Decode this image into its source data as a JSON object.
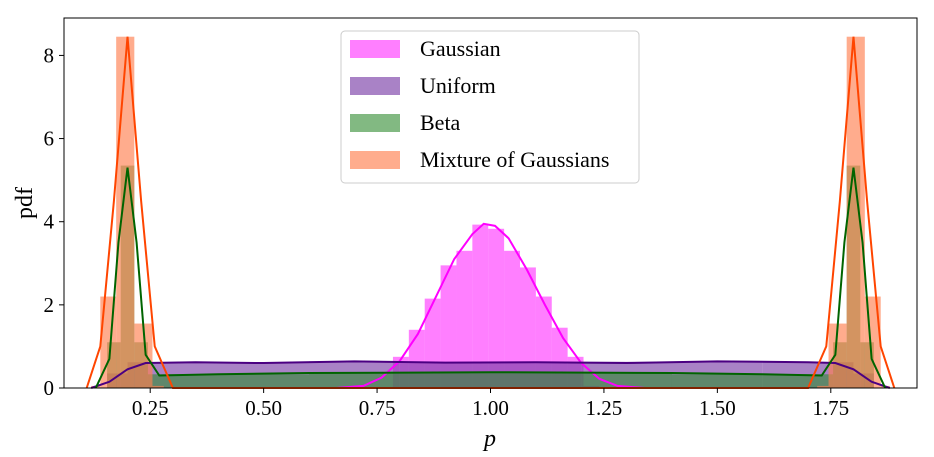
{
  "chart_data": {
    "type": "histogram",
    "xlabel": "p",
    "ylabel": "pdf",
    "xlim": [
      0.06,
      1.94
    ],
    "ylim": [
      0,
      8.9
    ],
    "xticks": [
      "0.25",
      "0.50",
      "0.75",
      "1.00",
      "1.25",
      "1.50",
      "1.75"
    ],
    "xtick_values": [
      0.25,
      0.5,
      0.75,
      1.0,
      1.25,
      1.5,
      1.75
    ],
    "yticks": [
      "0",
      "2",
      "4",
      "6",
      "8"
    ],
    "ytick_values": [
      0,
      2,
      4,
      6,
      8
    ],
    "legend_position": "upper-center",
    "series": [
      {
        "name": "Gaussian",
        "fill": "#ff00ff",
        "line": "#ff00ff",
        "fill_opacity": 0.5,
        "bins": [
          [
            0.785,
            0.82,
            0.75
          ],
          [
            0.82,
            0.855,
            1.4
          ],
          [
            0.855,
            0.89,
            2.15
          ],
          [
            0.89,
            0.925,
            2.95
          ],
          [
            0.925,
            0.96,
            3.3
          ],
          [
            0.96,
            0.995,
            3.93
          ],
          [
            0.995,
            1.03,
            3.83
          ],
          [
            1.03,
            1.065,
            3.3
          ],
          [
            1.065,
            1.1,
            2.9
          ],
          [
            1.1,
            1.135,
            2.2
          ],
          [
            1.135,
            1.17,
            1.45
          ],
          [
            1.17,
            1.205,
            0.75
          ],
          [
            1.205,
            1.24,
            0.05
          ]
        ],
        "kde": [
          [
            0.66,
            0.0
          ],
          [
            0.72,
            0.05
          ],
          [
            0.76,
            0.25
          ],
          [
            0.8,
            0.65
          ],
          [
            0.84,
            1.3
          ],
          [
            0.88,
            2.2
          ],
          [
            0.92,
            3.1
          ],
          [
            0.96,
            3.7
          ],
          [
            0.985,
            3.95
          ],
          [
            1.01,
            3.9
          ],
          [
            1.04,
            3.6
          ],
          [
            1.08,
            2.85
          ],
          [
            1.12,
            2.0
          ],
          [
            1.16,
            1.2
          ],
          [
            1.2,
            0.6
          ],
          [
            1.24,
            0.22
          ],
          [
            1.28,
            0.05
          ],
          [
            1.34,
            0.0
          ]
        ]
      },
      {
        "name": "Uniform",
        "fill": "#7b3fa8",
        "line": "#4b0082",
        "fill_opacity": 0.65,
        "bins": [
          [
            0.155,
            0.2,
            0.35
          ],
          [
            0.2,
            0.245,
            0.62
          ],
          [
            0.245,
            0.6,
            0.62
          ],
          [
            0.6,
            0.8,
            0.64
          ],
          [
            0.8,
            1.2,
            0.6
          ],
          [
            1.2,
            1.6,
            0.63
          ],
          [
            1.6,
            1.755,
            0.62
          ],
          [
            1.755,
            1.8,
            0.62
          ],
          [
            1.8,
            1.845,
            0.35
          ]
        ],
        "kde": [
          [
            0.12,
            0.0
          ],
          [
            0.16,
            0.15
          ],
          [
            0.2,
            0.45
          ],
          [
            0.24,
            0.6
          ],
          [
            0.35,
            0.62
          ],
          [
            0.5,
            0.6
          ],
          [
            0.7,
            0.64
          ],
          [
            0.9,
            0.61
          ],
          [
            1.1,
            0.62
          ],
          [
            1.3,
            0.6
          ],
          [
            1.5,
            0.64
          ],
          [
            1.7,
            0.62
          ],
          [
            1.76,
            0.6
          ],
          [
            1.8,
            0.45
          ],
          [
            1.84,
            0.15
          ],
          [
            1.88,
            0.0
          ]
        ]
      },
      {
        "name": "Beta",
        "fill": "#2e8b2e",
        "line": "#006400",
        "fill_opacity": 0.6,
        "bins": [
          [
            0.155,
            0.185,
            1.1
          ],
          [
            0.185,
            0.215,
            5.35
          ],
          [
            0.215,
            0.245,
            1.1
          ],
          [
            0.245,
            0.6,
            0.33
          ],
          [
            0.6,
            1.4,
            0.38
          ],
          [
            1.4,
            1.755,
            0.33
          ],
          [
            1.755,
            1.785,
            1.1
          ],
          [
            1.785,
            1.815,
            5.35
          ],
          [
            1.815,
            1.845,
            1.1
          ]
        ],
        "kde": [
          [
            0.13,
            0.0
          ],
          [
            0.16,
            0.7
          ],
          [
            0.18,
            3.5
          ],
          [
            0.2,
            5.3
          ],
          [
            0.22,
            3.5
          ],
          [
            0.24,
            0.8
          ],
          [
            0.27,
            0.3
          ],
          [
            0.4,
            0.33
          ],
          [
            0.6,
            0.36
          ],
          [
            1.0,
            0.38
          ],
          [
            1.4,
            0.36
          ],
          [
            1.6,
            0.33
          ],
          [
            1.73,
            0.3
          ],
          [
            1.76,
            0.8
          ],
          [
            1.78,
            3.5
          ],
          [
            1.8,
            5.3
          ],
          [
            1.82,
            3.5
          ],
          [
            1.84,
            0.7
          ],
          [
            1.87,
            0.0
          ]
        ]
      },
      {
        "name": "Mixture of Gaussians",
        "fill": "#ff7f50",
        "line": "#ff4500",
        "fill_opacity": 0.65,
        "bins": [
          [
            0.12,
            0.14,
            0.05
          ],
          [
            0.14,
            0.175,
            2.2
          ],
          [
            0.175,
            0.215,
            8.45
          ],
          [
            0.215,
            0.255,
            1.55
          ],
          [
            0.255,
            0.28,
            0.05
          ],
          [
            1.72,
            1.745,
            0.05
          ],
          [
            1.745,
            1.785,
            1.55
          ],
          [
            1.785,
            1.825,
            8.45
          ],
          [
            1.825,
            1.86,
            2.2
          ],
          [
            1.86,
            1.88,
            0.05
          ]
        ],
        "kde": [
          [
            0.11,
            0.0
          ],
          [
            0.14,
            1.0
          ],
          [
            0.17,
            4.5
          ],
          [
            0.2,
            8.45
          ],
          [
            0.23,
            4.5
          ],
          [
            0.26,
            1.0
          ],
          [
            0.3,
            0.0
          ],
          [
            1.7,
            0.0
          ],
          [
            1.74,
            1.0
          ],
          [
            1.77,
            4.5
          ],
          [
            1.8,
            8.45
          ],
          [
            1.83,
            4.5
          ],
          [
            1.86,
            1.0
          ],
          [
            1.89,
            0.0
          ]
        ]
      }
    ]
  }
}
